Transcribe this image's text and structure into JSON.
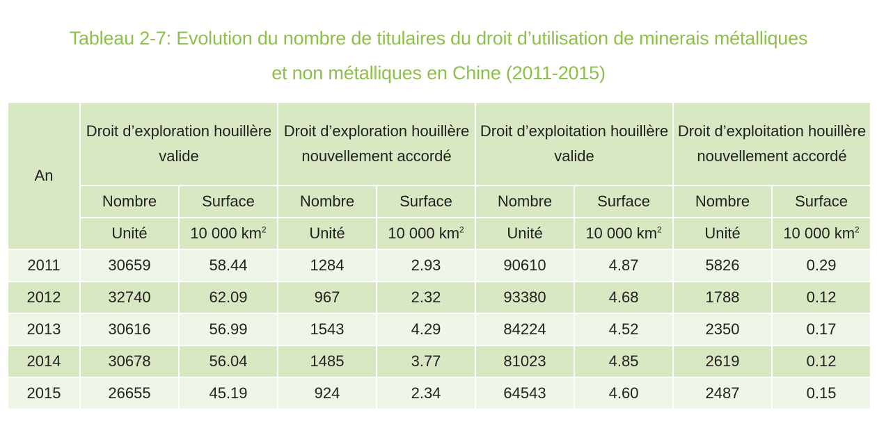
{
  "title": {
    "line1": "Tableau 2-7: Evolution du nombre de titulaires du droit d’utilisation de minerais métalliques",
    "line2": "et non métalliques en Chine (2011-2015)"
  },
  "table": {
    "year_header": "An",
    "groups": [
      "Droit d’exploration houillère valide",
      "Droit d’exploration houillère nouvellement accordé",
      "Droit d’exploitation houillère valide",
      "Droit d’exploitation houillère nouvellement accordé"
    ],
    "col_nombre": "Nombre",
    "col_surface": "Surface",
    "unit_nombre": "Unité",
    "unit_surface": "10 000 km",
    "unit_surface_sup": "2",
    "rows": [
      [
        "2011",
        "30659",
        "58.44",
        "1284",
        "2.93",
        "90610",
        "4.87",
        "5826",
        "0.29"
      ],
      [
        "2012",
        "32740",
        "62.09",
        "967",
        "2.32",
        "93380",
        "4.68",
        "1788",
        "0.12"
      ],
      [
        "2013",
        "30616",
        "56.99",
        "1543",
        "4.29",
        "84224",
        "4.52",
        "2350",
        "0.17"
      ],
      [
        "2014",
        "30678",
        "56.04",
        "1485",
        "3.77",
        "81023",
        "4.85",
        "2619",
        "0.12"
      ],
      [
        "2015",
        "26655",
        "45.19",
        "924",
        "2.34",
        "64543",
        "4.60",
        "2487",
        "0.15"
      ]
    ]
  }
}
